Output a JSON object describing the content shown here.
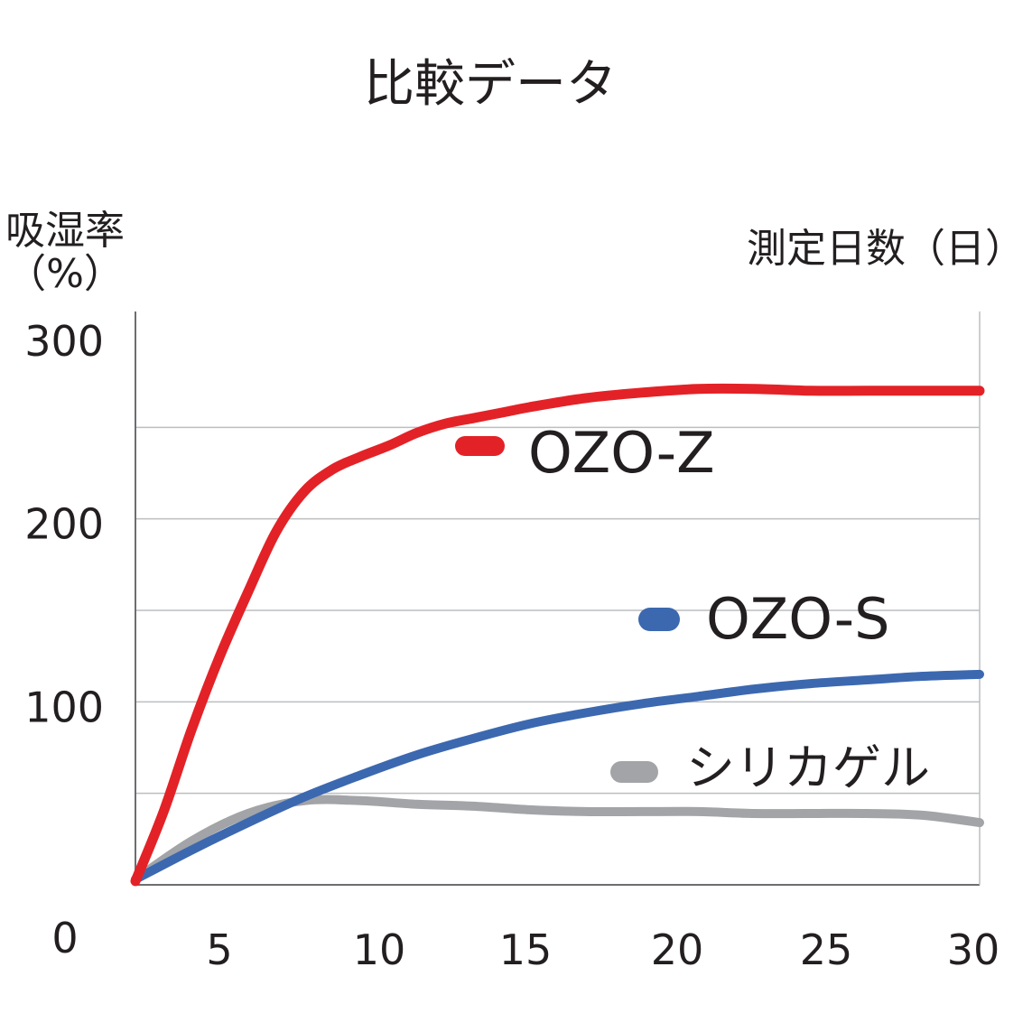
{
  "chart_data": {
    "type": "line",
    "title": "比較データ",
    "ylabel_line1": "吸湿率",
    "ylabel_line2": "（%）",
    "xlabel": "測定日数（日）",
    "ylim": [
      0,
      300
    ],
    "xlim": [
      0,
      30
    ],
    "y_ticks": [
      {
        "value": 0,
        "label": "0"
      },
      {
        "value": 100,
        "label": "100"
      },
      {
        "value": 200,
        "label": "200"
      },
      {
        "value": 300,
        "label": "300"
      }
    ],
    "x_ticks": [
      {
        "value": 5,
        "label": "5"
      },
      {
        "value": 10,
        "label": "10"
      },
      {
        "value": 15,
        "label": "15"
      },
      {
        "value": 20,
        "label": "20"
      },
      {
        "value": 25,
        "label": "25"
      },
      {
        "value": 30,
        "label": "30"
      }
    ],
    "gridlines_y": [
      50,
      100,
      150,
      200,
      250
    ],
    "grid": true,
    "series": [
      {
        "name": "OZO-Z",
        "color": "#e32227",
        "x": [
          0,
          1,
          2,
          3,
          4,
          5,
          6,
          7,
          8,
          9,
          10,
          11,
          12,
          13,
          14,
          16,
          18,
          20,
          22,
          24,
          26,
          28,
          30
        ],
        "values": [
          2,
          40,
          85,
          125,
          160,
          193,
          215,
          227,
          234,
          240,
          247,
          252,
          255,
          258,
          261,
          266,
          269,
          271,
          271,
          270,
          270,
          270,
          270
        ]
      },
      {
        "name": "OZO-S",
        "color": "#3c68b0",
        "x": [
          0,
          2,
          4,
          6,
          8,
          10,
          12,
          14,
          16,
          18,
          20,
          22,
          24,
          26,
          28,
          30
        ],
        "values": [
          3,
          19,
          34,
          48,
          60,
          71,
          80,
          88,
          94,
          99,
          103,
          107,
          110,
          112,
          114,
          115
        ]
      },
      {
        "name": "シリカゲル",
        "color": "#a2a4a7",
        "x": [
          0,
          2,
          4,
          6,
          8,
          10,
          12,
          14,
          16,
          18,
          20,
          22,
          24,
          26,
          28,
          30
        ],
        "values": [
          3,
          24,
          39,
          46,
          46,
          44,
          43,
          41,
          40,
          40,
          40,
          39,
          39,
          39,
          38,
          34
        ]
      }
    ]
  }
}
